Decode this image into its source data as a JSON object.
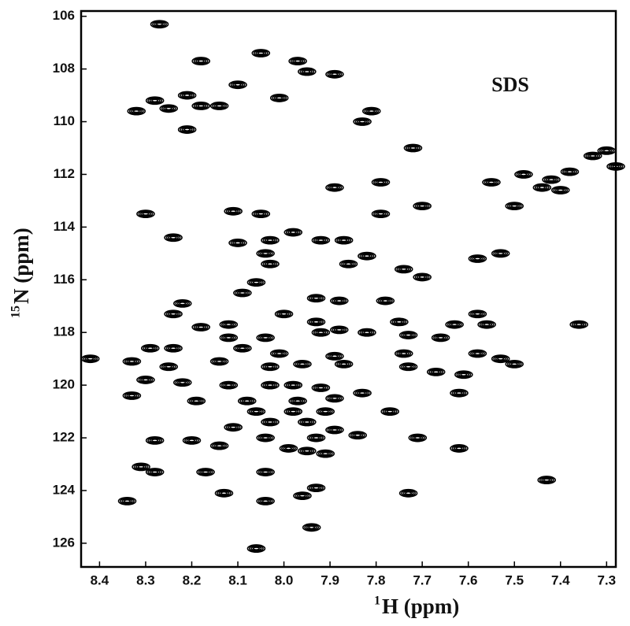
{
  "chart_data": {
    "type": "contour",
    "x_label_sup": "1",
    "x_label": "H (ppm)",
    "y_label_sup": "15",
    "y_label": "N (ppm)",
    "annotation": "SDS",
    "color": "#000000",
    "xlim": [
      8.44,
      7.28
    ],
    "ylim": [
      105.8,
      126.9
    ],
    "xticks": [
      8.4,
      8.3,
      8.2,
      8.1,
      {
        "value": 8,
        "label": "8.0"
      },
      7.9,
      7.8,
      7.7,
      7.6,
      7.5,
      7.4,
      7.3
    ],
    "yticks": [
      106,
      108,
      110,
      112,
      114,
      116,
      118,
      120,
      122,
      124,
      126
    ],
    "x": [
      8.27,
      8.18,
      8.05,
      7.97,
      7.95,
      8.1,
      8.21,
      8.28,
      8.25,
      8.18,
      8.14,
      8.32,
      8.01,
      7.89,
      8.21,
      7.83,
      7.81,
      7.72,
      7.89,
      7.79,
      8.3,
      8.11,
      8.05,
      7.7,
      7.5,
      7.79,
      8.24,
      8.1,
      8.03,
      7.98,
      7.92,
      7.87,
      8.04,
      8.03,
      7.82,
      7.58,
      7.53,
      7.86,
      7.74,
      7.7,
      8.06,
      8.09,
      7.78,
      7.93,
      7.88,
      8.22,
      8.24,
      7.58,
      8.12,
      8.18,
      8.0,
      7.36,
      7.63,
      7.56,
      7.75,
      7.93,
      7.88,
      7.73,
      7.66,
      8.12,
      8.04,
      7.92,
      7.82,
      8.29,
      8.24,
      8.09,
      8.01,
      7.89,
      7.74,
      7.58,
      7.53,
      8.33,
      8.42,
      8.25,
      8.14,
      8.03,
      7.96,
      7.87,
      7.73,
      7.5,
      7.61,
      7.67,
      8.3,
      8.22,
      8.12,
      8.03,
      7.98,
      7.92,
      7.83,
      7.62,
      8.33,
      8.19,
      8.08,
      7.97,
      7.89,
      8.06,
      7.98,
      7.91,
      7.77,
      8.03,
      7.95,
      7.89,
      8.11,
      7.93,
      7.84,
      7.71,
      8.28,
      8.2,
      8.14,
      8.04,
      7.99,
      8.28,
      8.17,
      8.04,
      7.95,
      7.91,
      7.93,
      7.96,
      8.04,
      8.34,
      7.73,
      7.43,
      7.62,
      8.06,
      7.94,
      8.13,
      8.31,
      7.55,
      7.48,
      7.42,
      7.38,
      7.33,
      7.3,
      7.28,
      7.44,
      7.4
    ],
    "y": [
      106.3,
      107.7,
      107.4,
      107.7,
      108.1,
      108.6,
      109.0,
      109.2,
      109.5,
      109.4,
      109.4,
      109.6,
      109.1,
      108.2,
      110.3,
      110.0,
      109.6,
      111.0,
      112.5,
      112.3,
      113.5,
      113.4,
      113.5,
      113.2,
      113.2,
      113.5,
      114.4,
      114.6,
      114.5,
      114.2,
      114.5,
      114.5,
      115.0,
      115.4,
      115.1,
      115.2,
      115.0,
      115.4,
      115.6,
      115.9,
      116.1,
      116.5,
      116.8,
      116.7,
      116.8,
      116.9,
      117.3,
      117.3,
      117.7,
      117.8,
      117.3,
      117.7,
      117.7,
      117.7,
      117.6,
      117.6,
      117.9,
      118.1,
      118.2,
      118.2,
      118.2,
      118.0,
      118.0,
      118.6,
      118.6,
      118.6,
      118.8,
      118.9,
      118.8,
      118.8,
      119.0,
      119.1,
      119.0,
      119.3,
      119.1,
      119.3,
      119.2,
      119.2,
      119.3,
      119.2,
      119.6,
      119.5,
      119.8,
      119.9,
      120.0,
      120.0,
      120.0,
      120.1,
      120.3,
      120.3,
      120.4,
      120.6,
      120.6,
      120.6,
      120.5,
      121.0,
      121.0,
      121.0,
      121.0,
      121.4,
      121.4,
      121.7,
      121.6,
      122.0,
      121.9,
      122.0,
      122.1,
      122.1,
      122.3,
      122.0,
      122.4,
      123.3,
      123.3,
      123.3,
      122.5,
      122.6,
      123.9,
      124.2,
      124.4,
      124.4,
      124.1,
      123.6,
      122.4,
      126.2,
      125.4,
      124.1,
      123.1,
      112.3,
      112.0,
      112.2,
      111.9,
      111.3,
      111.1,
      111.7,
      112.5,
      112.6
    ]
  }
}
